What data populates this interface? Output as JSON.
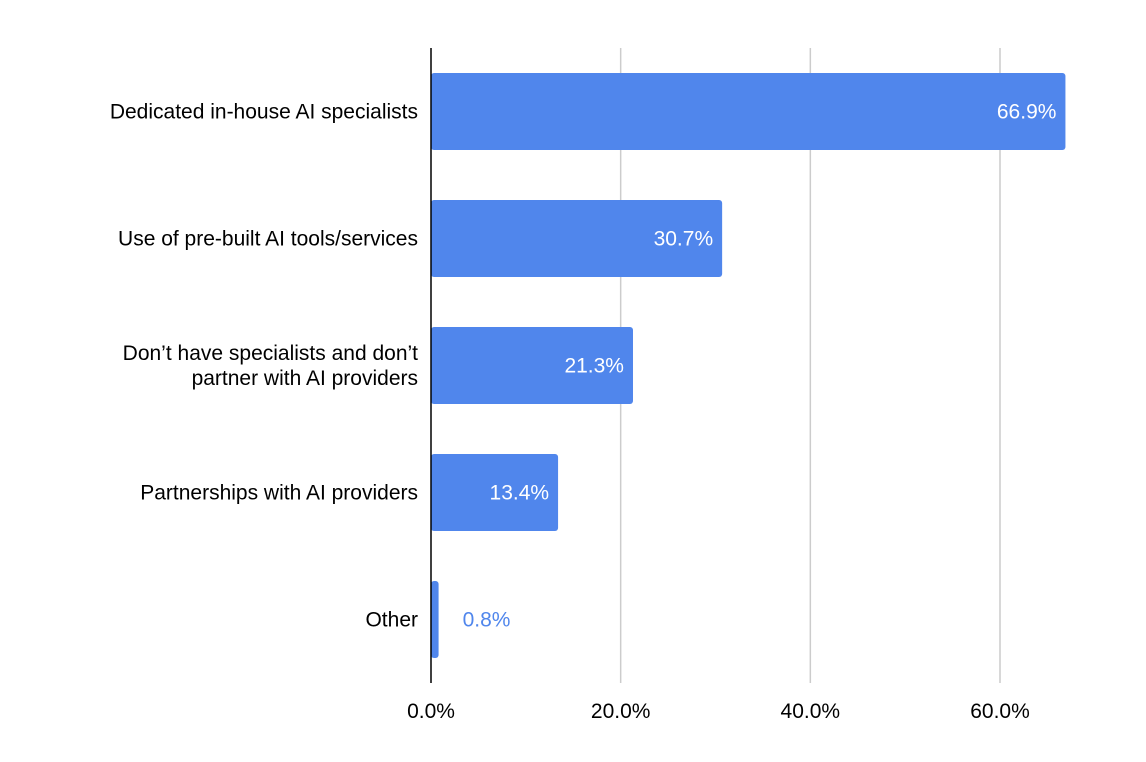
{
  "chart_data": {
    "type": "bar",
    "orientation": "horizontal",
    "categories": [
      [
        "Dedicated in-house AI specialists"
      ],
      [
        "Use of pre-built AI tools/services"
      ],
      [
        "Don’t have specialists and don’t",
        "partner with AI providers"
      ],
      [
        "Partnerships with AI providers"
      ],
      [
        "Other"
      ]
    ],
    "values": [
      66.9,
      30.7,
      21.3,
      13.4,
      0.8
    ],
    "data_labels": [
      "66.9%",
      "30.7%",
      "21.3%",
      "13.4%",
      "0.8%"
    ],
    "xlim": [
      0,
      60
    ],
    "x_ticks": [
      0,
      20,
      40,
      60
    ],
    "x_tick_labels": [
      "0.0%",
      "20.0%",
      "40.0%",
      "60.0%"
    ],
    "grid": true,
    "colors": {
      "bar": "#5086ec",
      "label_inside": "#ffffff",
      "label_outside": "#5086ec",
      "grid": "#cccccc",
      "axis": "#000000"
    }
  }
}
